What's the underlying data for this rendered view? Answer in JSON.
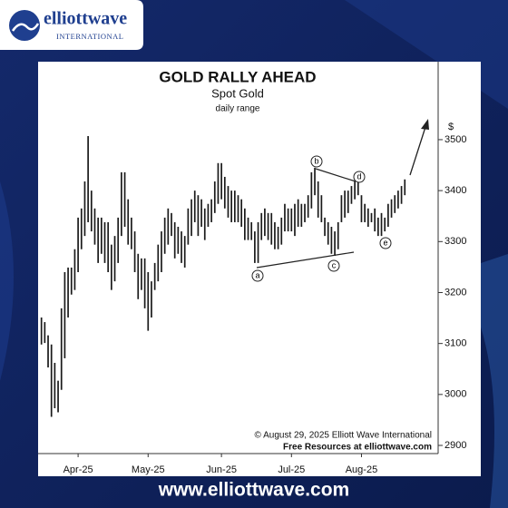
{
  "logo": {
    "name": "elliottwave",
    "sub": "INTERNATIONAL"
  },
  "footer": "www.elliottwave.com",
  "chart_data": {
    "type": "range",
    "title": "GOLD RALLY AHEAD",
    "subtitle": "Spot Gold",
    "note": "daily range",
    "y_label": "$",
    "copyright": "© August 29, 2025  Elliott Wave International",
    "resources": "Free Resources at elliottwave.com",
    "wave_labels": [
      "a",
      "b",
      "c",
      "d",
      "e"
    ],
    "color": "#1a1a1a",
    "high": [
      3151,
      3142,
      3116,
      3098,
      3062,
      3027,
      3169,
      3240,
      3249,
      3249,
      3285,
      3347,
      3365,
      3418,
      3507,
      3400,
      3365,
      3347,
      3347,
      3338,
      3338,
      3294,
      3311,
      3347,
      3436,
      3436,
      3383,
      3347,
      3320,
      3276,
      3267,
      3267,
      3240,
      3222,
      3258,
      3294,
      3320,
      3347,
      3365,
      3356,
      3338,
      3329,
      3320,
      3311,
      3365,
      3383,
      3400,
      3391,
      3383,
      3365,
      3374,
      3383,
      3418,
      3454,
      3454,
      3427,
      3409,
      3400,
      3400,
      3391,
      3383,
      3365,
      3347,
      3338,
      3320,
      3338,
      3356,
      3365,
      3356,
      3356,
      3338,
      3329,
      3347,
      3374,
      3365,
      3365,
      3374,
      3383,
      3374,
      3374,
      3391,
      3436,
      3445,
      3418,
      3391,
      3347,
      3338,
      3329,
      3320,
      3338,
      3391,
      3400,
      3400,
      3409,
      3418,
      3427,
      3391,
      3374,
      3365,
      3356,
      3365,
      3347,
      3356,
      3347,
      3374,
      3383,
      3391,
      3400,
      3409,
      3422
    ],
    "low": [
      3098,
      3101,
      3053,
      2956,
      2973,
      2965,
      3009,
      3071,
      3151,
      3196,
      3205,
      3240,
      3285,
      3311,
      3338,
      3320,
      3294,
      3258,
      3276,
      3258,
      3240,
      3205,
      3222,
      3258,
      3311,
      3329,
      3294,
      3285,
      3240,
      3187,
      3205,
      3169,
      3125,
      3151,
      3205,
      3222,
      3240,
      3276,
      3294,
      3311,
      3267,
      3276,
      3258,
      3249,
      3294,
      3311,
      3338,
      3311,
      3329,
      3303,
      3329,
      3338,
      3356,
      3374,
      3383,
      3365,
      3347,
      3338,
      3338,
      3338,
      3329,
      3303,
      3303,
      3303,
      3258,
      3258,
      3303,
      3311,
      3303,
      3294,
      3285,
      3285,
      3294,
      3320,
      3320,
      3320,
      3311,
      3329,
      3329,
      3338,
      3347,
      3365,
      3391,
      3347,
      3338,
      3311,
      3294,
      3276,
      3272,
      3285,
      3338,
      3347,
      3356,
      3374,
      3383,
      3391,
      3338,
      3338,
      3329,
      3338,
      3320,
      3311,
      3311,
      3320,
      3329,
      3347,
      3356,
      3365,
      3374,
      3391
    ],
    "xlim": [
      -1,
      119
    ],
    "xticks": [
      {
        "value": 11,
        "label": "Apr-25"
      },
      {
        "value": 32,
        "label": "May-25"
      },
      {
        "value": 54,
        "label": "Jun-25"
      },
      {
        "value": 75,
        "label": "Jul-25"
      },
      {
        "value": 96,
        "label": "Aug-25"
      }
    ],
    "ylim": [
      2884,
      3653
    ],
    "yticks": [
      2900,
      3000,
      3100,
      3200,
      3300,
      3400,
      3500
    ]
  }
}
